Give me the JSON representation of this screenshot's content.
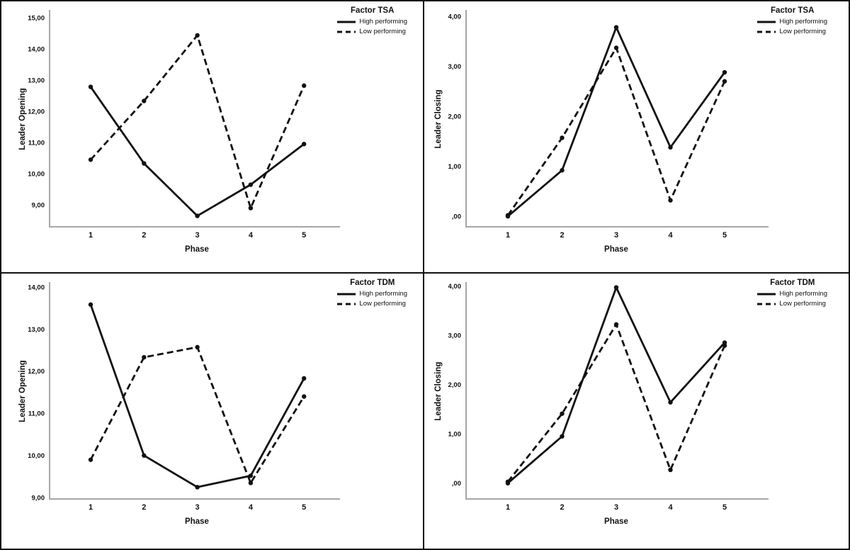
{
  "colors": {
    "line": "#111111",
    "axis": "#a6a6a6",
    "background": "#ffffff",
    "border": "#111111"
  },
  "chart_data": [
    {
      "id": "tsa-leader-opening",
      "type": "line",
      "position": "top-left",
      "title": "Factor TSA",
      "xlabel": "Phase",
      "ylabel": "Leader Opening",
      "categories": [
        "1",
        "2",
        "3",
        "4",
        "5"
      ],
      "y_ticks": [
        "15,00",
        "14,00",
        "13,00",
        "12,00",
        "11,00",
        "10,00",
        "9,00"
      ],
      "y_tick_values": [
        15,
        14,
        13,
        12,
        11,
        10,
        9
      ],
      "ylim": [
        8.3,
        15.2
      ],
      "grid": false,
      "legend_position": "top-right",
      "legend": [
        "High performing",
        "Low performing"
      ],
      "series": [
        {
          "name": "High performing",
          "style": "solid",
          "values": [
            12.78,
            10.33,
            8.65,
            9.65,
            10.95
          ]
        },
        {
          "name": "Low performing",
          "style": "dashed",
          "values": [
            10.45,
            12.33,
            14.43,
            8.9,
            12.82
          ]
        }
      ]
    },
    {
      "id": "tsa-leader-closing",
      "type": "line",
      "position": "top-right",
      "title": "Factor TSA",
      "xlabel": "Phase",
      "ylabel": "Leader Closing",
      "categories": [
        "1",
        "2",
        "3",
        "4",
        "5"
      ],
      "y_ticks": [
        "4,00",
        "3,00",
        "2,00",
        "1,00",
        ",00"
      ],
      "y_tick_values": [
        4,
        3,
        2,
        1,
        0
      ],
      "ylim": [
        -0.21,
        4.1
      ],
      "grid": false,
      "legend_position": "top-right",
      "legend": [
        "High performing",
        "Low performing"
      ],
      "series": [
        {
          "name": "High performing",
          "style": "solid",
          "values": [
            0.0,
            0.92,
            3.78,
            1.38,
            2.88
          ]
        },
        {
          "name": "Low performing",
          "style": "dashed",
          "values": [
            0.02,
            1.57,
            3.37,
            0.32,
            2.7
          ]
        }
      ]
    },
    {
      "id": "tdm-leader-opening",
      "type": "line",
      "position": "bottom-left",
      "title": "Factor TDM",
      "xlabel": "Phase",
      "ylabel": "Leader Opening",
      "categories": [
        "1",
        "2",
        "3",
        "4",
        "5"
      ],
      "y_ticks": [
        "14,00",
        "13,00",
        "12,00",
        "11,00",
        "10,00",
        "9,00"
      ],
      "y_tick_values": [
        14,
        13,
        12,
        11,
        10,
        9
      ],
      "ylim": [
        8.97,
        14.08
      ],
      "grid": false,
      "legend_position": "top-right",
      "legend": [
        "High performing",
        "Low performing"
      ],
      "series": [
        {
          "name": "High performing",
          "style": "solid",
          "values": [
            13.58,
            10.0,
            9.25,
            9.52,
            11.83
          ]
        },
        {
          "name": "Low performing",
          "style": "dashed",
          "values": [
            9.9,
            12.33,
            12.57,
            9.35,
            11.4
          ]
        }
      ]
    },
    {
      "id": "tdm-leader-closing",
      "type": "line",
      "position": "bottom-right",
      "title": "Factor TDM",
      "xlabel": "Phase",
      "ylabel": "Leader Closing",
      "categories": [
        "1",
        "2",
        "3",
        "4",
        "5"
      ],
      "y_ticks": [
        "4,00",
        "3,00",
        "2,00",
        "1,00",
        ",00"
      ],
      "y_tick_values": [
        4,
        3,
        2,
        1,
        0
      ],
      "ylim": [
        -0.32,
        4.05
      ],
      "grid": false,
      "legend_position": "top-right",
      "legend": [
        "High performing",
        "Low performing"
      ],
      "series": [
        {
          "name": "High performing",
          "style": "solid",
          "values": [
            0.0,
            0.95,
            3.97,
            1.64,
            2.85
          ]
        },
        {
          "name": "Low performing",
          "style": "dashed",
          "values": [
            0.03,
            1.41,
            3.22,
            0.27,
            2.79
          ]
        }
      ]
    }
  ]
}
